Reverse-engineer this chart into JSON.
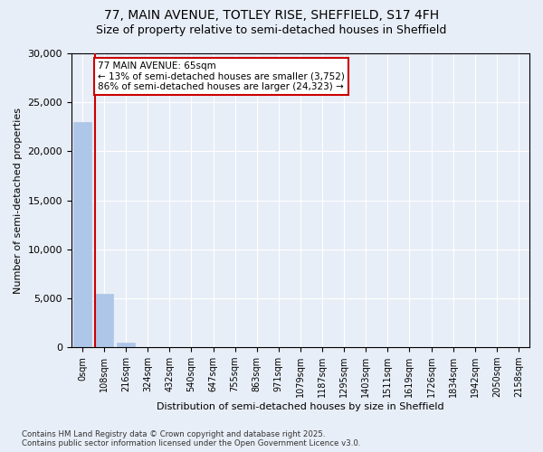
{
  "title_line1": "77, MAIN AVENUE, TOTLEY RISE, SHEFFIELD, S17 4FH",
  "title_line2": "Size of property relative to semi-detached houses in Sheffield",
  "xlabel": "Distribution of semi-detached houses by size in Sheffield",
  "ylabel": "Number of semi-detached properties",
  "bin_labels": [
    "0sqm",
    "108sqm",
    "216sqm",
    "324sqm",
    "432sqm",
    "540sqm",
    "647sqm",
    "755sqm",
    "863sqm",
    "971sqm",
    "1079sqm",
    "1187sqm",
    "1295sqm",
    "1403sqm",
    "1511sqm",
    "1619sqm",
    "1726sqm",
    "1834sqm",
    "1942sqm",
    "2050sqm",
    "2158sqm"
  ],
  "bar_values": [
    23000,
    5500,
    500,
    0,
    0,
    0,
    0,
    0,
    0,
    0,
    0,
    0,
    0,
    0,
    0,
    0,
    0,
    0,
    0,
    0,
    0
  ],
  "bar_color": "#aec6e8",
  "bar_edge_color": "#aec6e8",
  "subject_sqm": 65,
  "annotation_title": "77 MAIN AVENUE: 65sqm",
  "annotation_line2": "← 13% of semi-detached houses are smaller (3,752)",
  "annotation_line3": "86% of semi-detached houses are larger (24,323) →",
  "annotation_box_color": "#ffffff",
  "annotation_box_edge": "#cc0000",
  "subject_line_color": "#cc0000",
  "ylim": [
    0,
    30000
  ],
  "yticks": [
    0,
    5000,
    10000,
    15000,
    20000,
    25000,
    30000
  ],
  "background_color": "#e8eef7",
  "plot_background": "#e8eef7",
  "grid_color": "#ffffff",
  "footer_line1": "Contains HM Land Registry data © Crown copyright and database right 2025.",
  "footer_line2": "Contains public sector information licensed under the Open Government Licence v3.0."
}
